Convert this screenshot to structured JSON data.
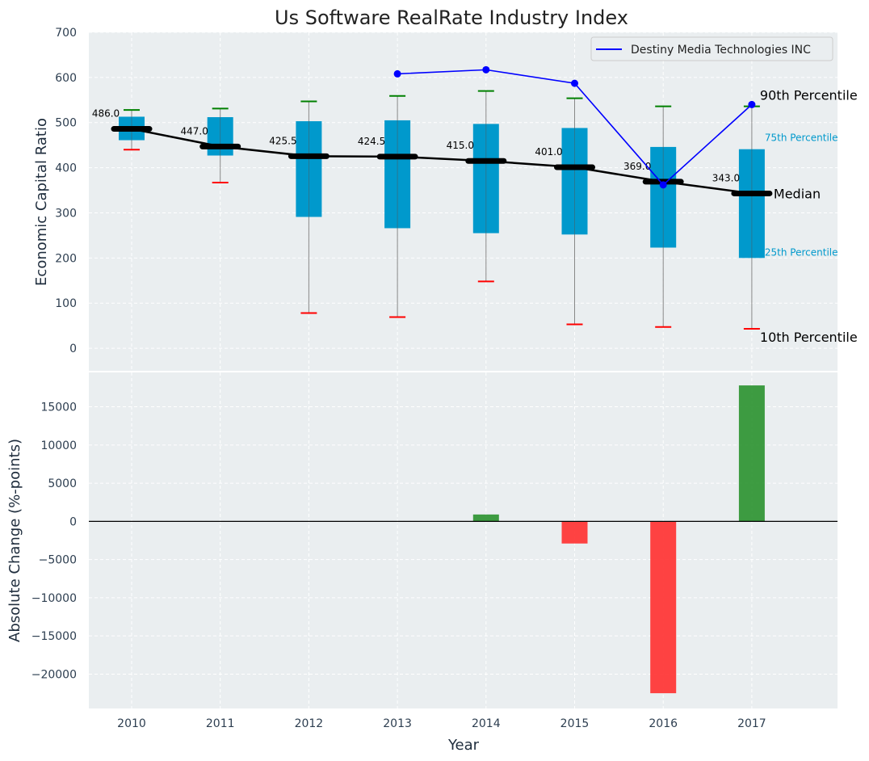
{
  "chart_data": [
    {
      "type": "box",
      "title": "Us Software RealRate Industry Index",
      "ylabel": "Economic Capital Ratio",
      "xlabel": "",
      "ylim": [
        -50,
        700
      ],
      "yticks": [
        0,
        100,
        200,
        300,
        400,
        500,
        600,
        700
      ],
      "categories": [
        "2010",
        "2011",
        "2012",
        "2013",
        "2014",
        "2015",
        "2016",
        "2017"
      ],
      "p10": [
        440,
        367,
        78,
        69,
        148,
        53,
        47,
        43
      ],
      "p25": [
        461,
        427,
        291,
        266,
        255,
        252,
        223,
        200
      ],
      "median": [
        486.0,
        447.0,
        425.5,
        424.5,
        415.0,
        401.0,
        369.0,
        343.0
      ],
      "p75": [
        513,
        512,
        503,
        505,
        497,
        488,
        446,
        441
      ],
      "p90": [
        528,
        531,
        547,
        559,
        570,
        554,
        536,
        536
      ],
      "median_labels": [
        "486.0",
        "447.0",
        "425.5",
        "424.5",
        "415.0",
        "401.0",
        "369.0",
        "343.0"
      ],
      "company_series": {
        "name": "Destiny Media Technologies INC",
        "x": [
          "2013",
          "2014",
          "2015",
          "2016",
          "2017"
        ],
        "values": [
          608,
          617,
          587,
          362,
          540
        ]
      },
      "annotations": {
        "p90": "90th Percentile",
        "p75": "75th Percentile",
        "median": "Median",
        "p25": "25th Percentile",
        "p10": "10th Percentile"
      },
      "legend_position": "top-right",
      "colors": {
        "box": "#0099cc",
        "median": "#000000",
        "p90_cap": "#008000",
        "p10_cap": "#ff0000",
        "company": "#0000ff",
        "background": "#eaeef0",
        "whisker": "#888888"
      },
      "grid": true
    },
    {
      "type": "bar",
      "xlabel": "Year",
      "ylabel": "Absolute Change (%-points)",
      "ylim": [
        -24500,
        19500
      ],
      "yticks": [
        -20000,
        -15000,
        -10000,
        -5000,
        0,
        5000,
        10000,
        15000
      ],
      "ytick_labels": [
        "−20000",
        "−15000",
        "−10000",
        "−5000",
        "0",
        "5000",
        "10000",
        "15000"
      ],
      "categories": [
        "2010",
        "2011",
        "2012",
        "2013",
        "2014",
        "2015",
        "2016",
        "2017"
      ],
      "values": [
        0,
        0,
        0,
        0,
        900,
        -2900,
        -22500,
        17800
      ],
      "colors": {
        "positive": "#2e9432",
        "negative": "#ff3333"
      },
      "grid": true
    }
  ]
}
